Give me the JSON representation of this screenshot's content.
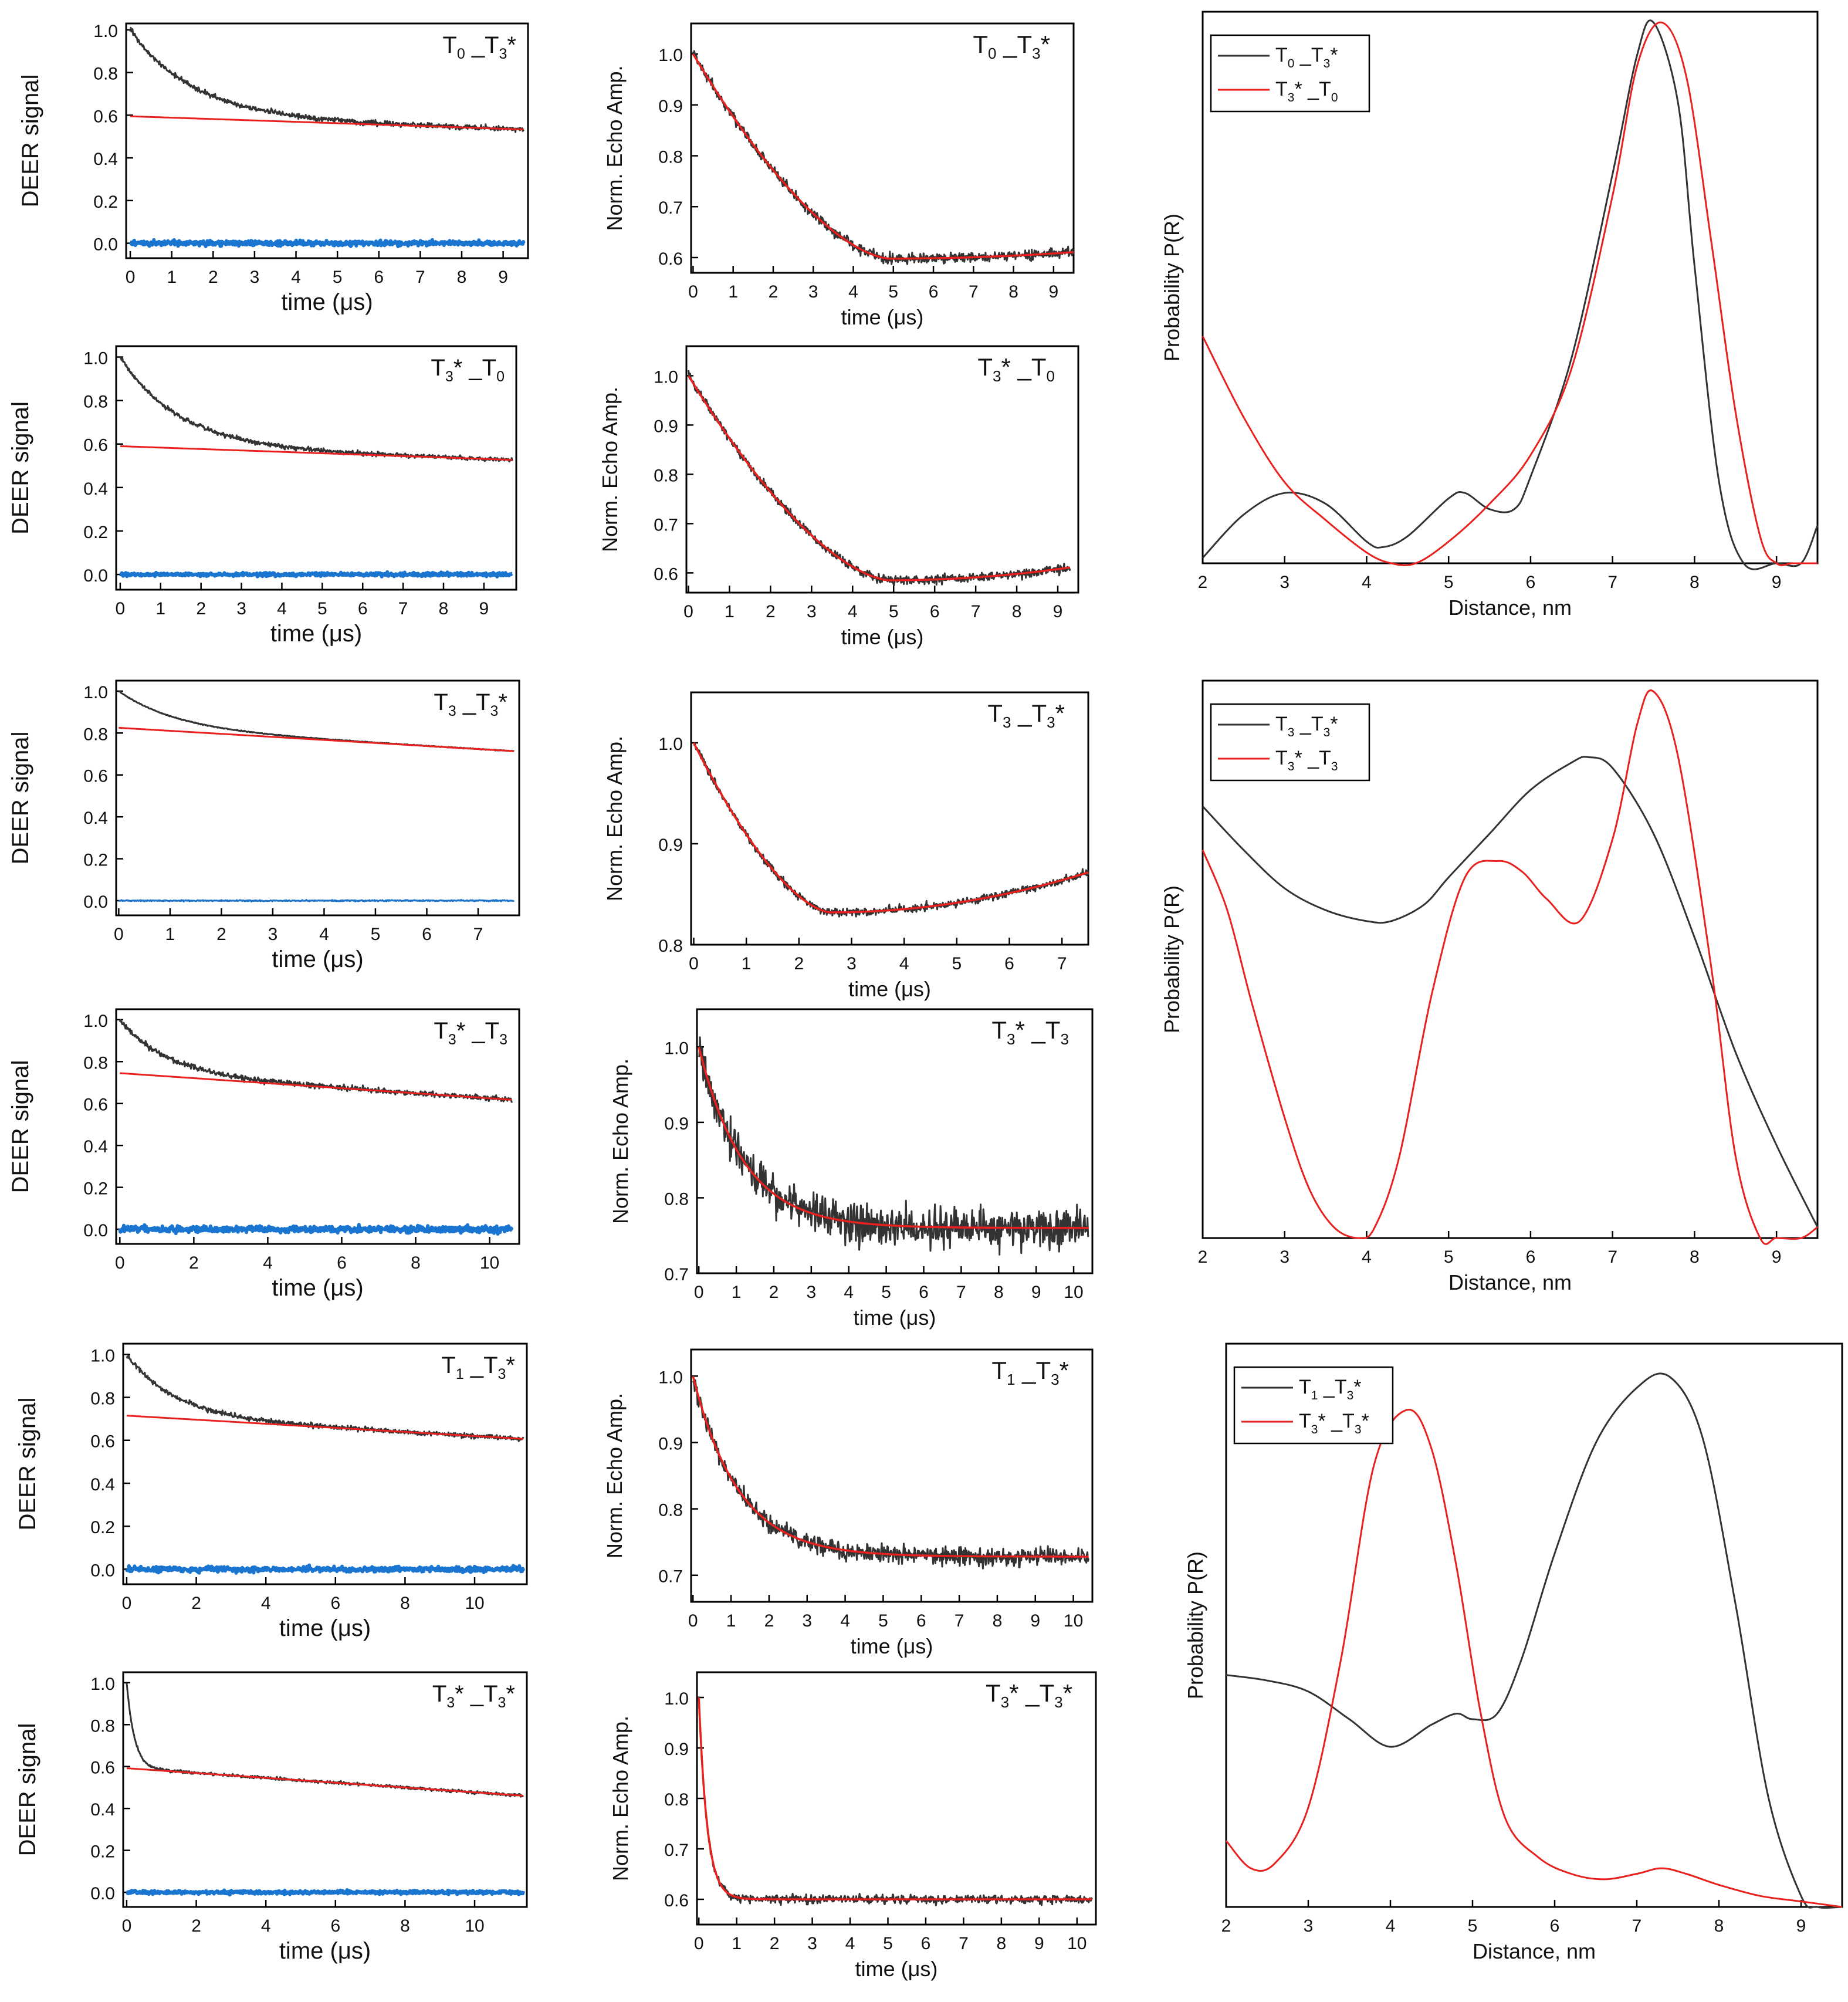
{
  "colors": {
    "data": "#333333",
    "fit": "#e8211e",
    "residual": "#1a75d1",
    "axis": "#000000"
  },
  "chart_data": [
    {
      "type": "line",
      "id": "deer-1",
      "title": "T0_T3*",
      "title_parts": [
        "T",
        "0",
        " _T",
        "3",
        "*"
      ],
      "xlabel": "time (μs)",
      "ylabel": "DEER signal",
      "xlim": [
        -0.1,
        9.6
      ],
      "ylim": [
        -0.07,
        1.03
      ],
      "xticks": [
        0,
        1,
        2,
        3,
        4,
        5,
        6,
        7,
        8,
        9
      ],
      "yticks": [
        0.0,
        0.2,
        0.4,
        0.6,
        0.8,
        1.0
      ],
      "xmax_data": 9.5,
      "decay": {
        "lam": 0.42,
        "tau": 1.5
      },
      "bg": {
        "a": 0.595,
        "slope": 0.0065
      },
      "resid_amp": 0.012,
      "noise": 0.012,
      "seed": 11
    },
    {
      "type": "line",
      "id": "echo-1",
      "title": "T0_T3*",
      "title_parts": [
        "T",
        "0",
        " _T",
        "3",
        "*"
      ],
      "xlabel": "time (μs)",
      "ylabel": "Norm. Echo Amp.",
      "xlim": [
        -0.05,
        9.5
      ],
      "ylim": [
        0.57,
        1.06
      ],
      "xticks": [
        0,
        1,
        2,
        3,
        4,
        5,
        6,
        7,
        8,
        9
      ],
      "yticks": [
        0.6,
        0.7,
        0.8,
        0.9,
        1.0
      ],
      "xmax_data": 9.5,
      "echo": {
        "k": 0.085,
        "mu": 4.9,
        "s": 2.0,
        "c": 0.002,
        "base": 0.598
      },
      "noise": 0.01,
      "seed": 12
    },
    {
      "type": "line",
      "id": "dist-1",
      "series_names": [
        "T0_T3*",
        "T3*_T0"
      ],
      "series_parts": [
        [
          "T",
          "0",
          " _T",
          "3",
          "*"
        ],
        [
          "T",
          "3",
          "* _T",
          "0",
          ""
        ]
      ],
      "xlabel": "Distance, nm",
      "ylabel": "Probability P(R)",
      "xlim": [
        2,
        9.5
      ],
      "ylim": [
        0,
        1.02
      ],
      "xticks": [
        2,
        3,
        4,
        5,
        6,
        7,
        8,
        9
      ],
      "series": [
        {
          "name": "T0_T3*",
          "x": [
            2.0,
            2.5,
            3.0,
            3.5,
            4.0,
            4.2,
            4.5,
            5.0,
            5.2,
            5.5,
            5.8,
            6.0,
            6.5,
            7.0,
            7.3,
            7.5,
            7.8,
            8.0,
            8.3,
            8.6,
            9.0,
            9.3,
            9.5
          ],
          "y": [
            0.01,
            0.09,
            0.13,
            0.11,
            0.04,
            0.03,
            0.05,
            0.12,
            0.13,
            0.1,
            0.1,
            0.16,
            0.38,
            0.72,
            0.94,
            1.0,
            0.85,
            0.55,
            0.15,
            0.0,
            0.0,
            0.0,
            0.07
          ]
        },
        {
          "name": "T3*_T0",
          "x": [
            2.0,
            2.5,
            3.0,
            3.5,
            4.0,
            4.3,
            4.6,
            5.0,
            5.5,
            6.0,
            6.5,
            7.0,
            7.3,
            7.6,
            7.9,
            8.2,
            8.5,
            8.8,
            9.0,
            9.2,
            9.5
          ],
          "y": [
            0.42,
            0.27,
            0.15,
            0.08,
            0.02,
            0.0,
            0.0,
            0.04,
            0.11,
            0.2,
            0.36,
            0.68,
            0.92,
            1.0,
            0.9,
            0.6,
            0.28,
            0.05,
            0.0,
            0.0,
            0.0
          ]
        }
      ],
      "legend_loc": "top-left"
    },
    {
      "type": "line",
      "id": "deer-2",
      "title": "T3*_T0",
      "title_parts": [
        "T",
        "3",
        "* _T",
        "0",
        ""
      ],
      "xlabel": "time (μs)",
      "ylabel": "DEER signal",
      "xlim": [
        -0.1,
        9.8
      ],
      "ylim": [
        -0.07,
        1.05
      ],
      "xticks": [
        0,
        1,
        2,
        3,
        4,
        5,
        6,
        7,
        8,
        9
      ],
      "yticks": [
        0.0,
        0.2,
        0.4,
        0.6,
        0.8,
        1.0
      ],
      "xmax_data": 9.7,
      "decay": {
        "lam": 0.41,
        "tau": 1.45
      },
      "bg": {
        "a": 0.59,
        "slope": 0.0065
      },
      "resid_amp": 0.008,
      "noise": 0.01,
      "seed": 21
    },
    {
      "type": "line",
      "id": "echo-2",
      "title": "T3*_T0",
      "title_parts": [
        "T",
        "3",
        "* _T",
        "0",
        ""
      ],
      "xlabel": "time (μs)",
      "ylabel": "Norm. Echo Amp.",
      "xlim": [
        -0.05,
        9.5
      ],
      "ylim": [
        0.56,
        1.06
      ],
      "xticks": [
        0,
        1,
        2,
        3,
        4,
        5,
        6,
        7,
        8,
        9
      ],
      "yticks": [
        0.6,
        0.7,
        0.8,
        0.9,
        1.0
      ],
      "xmax_data": 9.3,
      "echo": {
        "k": 0.085,
        "mu": 4.9,
        "s": 2.0,
        "c": 0.0045,
        "base": 0.585
      },
      "noise": 0.009,
      "seed": 22
    },
    {
      "type": "line",
      "id": "deer-3",
      "title": "T3_T3*",
      "title_parts": [
        "T",
        "3",
        " _T",
        "3",
        "*"
      ],
      "xlabel": "time (μs)",
      "ylabel": "DEER signal",
      "xlim": [
        -0.05,
        7.8
      ],
      "ylim": [
        -0.07,
        1.05
      ],
      "xticks": [
        0,
        1,
        2,
        3,
        4,
        5,
        6,
        7
      ],
      "yticks": [
        0.0,
        0.2,
        0.4,
        0.6,
        0.8,
        1.0
      ],
      "xmax_data": 7.7,
      "decay": {
        "lam": 0.17,
        "tau": 1.1
      },
      "bg": {
        "a": 0.825,
        "slope": 0.0145
      },
      "resid_amp": 0.003,
      "noise": 0.002,
      "seed": 31
    },
    {
      "type": "line",
      "id": "echo-3",
      "title": "T3_T3*",
      "title_parts": [
        "T",
        "3",
        " _T",
        "3",
        "*"
      ],
      "xlabel": "time (μs)",
      "ylabel": "Norm. Echo Amp.",
      "xlim": [
        -0.05,
        7.5
      ],
      "ylim": [
        0.8,
        1.05
      ],
      "xticks": [
        0,
        1,
        2,
        3,
        4,
        5,
        6,
        7
      ],
      "yticks": [
        0.8,
        0.9,
        1.0
      ],
      "xmax_data": 7.5,
      "echo": {
        "k": 0.16,
        "mu": 2.6,
        "s": 1.8,
        "c": 0.0055,
        "base": 0.832
      },
      "noise": 0.004,
      "seed": 32
    },
    {
      "type": "line",
      "id": "dist-2",
      "series_names": [
        "T3_T3*",
        "T3*_T3"
      ],
      "series_parts": [
        [
          "T",
          "3",
          " _T",
          "3",
          "*"
        ],
        [
          "T",
          "3",
          "* _T",
          "3",
          ""
        ]
      ],
      "xlabel": "Distance, nm",
      "ylabel": "Probability P(R)",
      "xlim": [
        2,
        9.5
      ],
      "ylim": [
        0,
        1.02
      ],
      "xticks": [
        2,
        3,
        4,
        5,
        6,
        7,
        8,
        9
      ],
      "series": [
        {
          "name": "T3_T3*",
          "x": [
            2.0,
            2.5,
            3.0,
            3.5,
            4.0,
            4.3,
            4.7,
            5.0,
            5.5,
            6.0,
            6.5,
            6.7,
            7.0,
            7.5,
            8.0,
            8.5,
            9.0,
            9.5
          ],
          "y": [
            0.79,
            0.71,
            0.64,
            0.6,
            0.58,
            0.58,
            0.61,
            0.66,
            0.74,
            0.82,
            0.87,
            0.88,
            0.86,
            0.74,
            0.55,
            0.34,
            0.17,
            0.02
          ]
        },
        {
          "name": "T3*_T3",
          "x": [
            2.0,
            2.3,
            2.6,
            3.0,
            3.3,
            3.6,
            3.9,
            4.1,
            4.4,
            4.8,
            5.2,
            5.6,
            5.9,
            6.2,
            6.6,
            7.0,
            7.3,
            7.5,
            7.8,
            8.2,
            8.5,
            8.8,
            9.0,
            9.3,
            9.5
          ],
          "y": [
            0.71,
            0.6,
            0.43,
            0.22,
            0.09,
            0.02,
            0.0,
            0.02,
            0.15,
            0.45,
            0.66,
            0.69,
            0.67,
            0.62,
            0.58,
            0.73,
            0.94,
            1.0,
            0.88,
            0.5,
            0.15,
            0.0,
            0.0,
            0.0,
            0.02
          ]
        }
      ],
      "legend_loc": "top-left"
    },
    {
      "type": "line",
      "id": "deer-4",
      "title": "T3*_T3",
      "title_parts": [
        "T",
        "3",
        "* _T",
        "3",
        ""
      ],
      "xlabel": "time (μs)",
      "ylabel": "DEER signal",
      "xlim": [
        -0.1,
        10.8
      ],
      "ylim": [
        -0.07,
        1.05
      ],
      "xticks": [
        0,
        2,
        4,
        6,
        8,
        10
      ],
      "yticks": [
        0.0,
        0.2,
        0.4,
        0.6,
        0.8,
        1.0
      ],
      "xmax_data": 10.6,
      "decay": {
        "lam": 0.26,
        "tau": 1.25
      },
      "bg": {
        "a": 0.745,
        "slope": 0.012
      },
      "resid_amp": 0.015,
      "noise": 0.013,
      "seed": 41
    },
    {
      "type": "line",
      "id": "echo-4",
      "title": "T3*_T3",
      "title_parts": [
        "T",
        "3",
        "* _T",
        "3",
        ""
      ],
      "xlabel": "time (μs)",
      "ylabel": "Norm. Echo Amp.",
      "xlim": [
        -0.05,
        10.5
      ],
      "ylim": [
        0.7,
        1.05
      ],
      "xticks": [
        0,
        1,
        2,
        3,
        4,
        5,
        6,
        7,
        8,
        9,
        10
      ],
      "yticks": [
        0.7,
        0.8,
        0.9,
        1.0
      ],
      "xmax_data": 10.4,
      "echo": {
        "k": 0.24,
        "mu": 7,
        "s": 3,
        "c": 0.0,
        "base": 0.76
      },
      "noise": 0.025,
      "seed": 42
    },
    {
      "type": "line",
      "id": "deer-5",
      "title": "T1_T3*",
      "title_parts": [
        "T",
        "1",
        " _T",
        "3",
        "*"
      ],
      "xlabel": "time (μs)",
      "ylabel": "DEER signal",
      "xlim": [
        -0.1,
        11.5
      ],
      "ylim": [
        -0.07,
        1.05
      ],
      "xticks": [
        0,
        2,
        4,
        6,
        8,
        10
      ],
      "yticks": [
        0.0,
        0.2,
        0.4,
        0.6,
        0.8,
        1.0
      ],
      "xmax_data": 11.4,
      "decay": {
        "lam": 0.29,
        "tau": 1.35
      },
      "bg": {
        "a": 0.715,
        "slope": 0.0095
      },
      "resid_amp": 0.013,
      "noise": 0.011,
      "seed": 51
    },
    {
      "type": "line",
      "id": "echo-5",
      "title": "T1_T3*",
      "title_parts": [
        "T",
        "1",
        " _T",
        "3",
        "*"
      ],
      "xlabel": "time (μs)",
      "ylabel": "Norm. Echo Amp.",
      "xlim": [
        -0.05,
        10.5
      ],
      "ylim": [
        0.66,
        1.04
      ],
      "xticks": [
        0,
        1,
        2,
        3,
        4,
        5,
        6,
        7,
        8,
        9,
        10
      ],
      "yticks": [
        0.7,
        0.8,
        0.9,
        1.0
      ],
      "xmax_data": 10.4,
      "echo": {
        "k": 0.27,
        "mu": 7,
        "s": 3,
        "c": 0.0,
        "base": 0.728
      },
      "noise": 0.013,
      "seed": 52
    },
    {
      "type": "line",
      "id": "dist-3",
      "series_names": [
        "T1_T3*",
        "T3*_T3*"
      ],
      "series_parts": [
        [
          "T",
          "1",
          " _T",
          "3",
          "*"
        ],
        [
          "T",
          "3",
          "* _T",
          "3",
          "*"
        ]
      ],
      "xlabel": "Distance, nm",
      "ylabel": "Probability P(R)",
      "xlim": [
        2,
        9.5
      ],
      "ylim": [
        0,
        1.02
      ],
      "xticks": [
        2,
        3,
        4,
        5,
        6,
        7,
        8,
        9
      ],
      "series": [
        {
          "name": "T1_T3*",
          "x": [
            2.0,
            2.5,
            3.0,
            3.5,
            4.0,
            4.5,
            4.8,
            5.0,
            5.3,
            5.6,
            6.0,
            6.5,
            7.0,
            7.4,
            7.8,
            8.2,
            8.6,
            9.0,
            9.2,
            9.5
          ],
          "y": [
            0.42,
            0.41,
            0.39,
            0.34,
            0.29,
            0.33,
            0.35,
            0.34,
            0.35,
            0.45,
            0.64,
            0.84,
            0.94,
            0.96,
            0.85,
            0.55,
            0.2,
            0.02,
            0.0,
            0.0
          ]
        },
        {
          "name": "T3*_T3*",
          "x": [
            2.0,
            2.3,
            2.6,
            3.0,
            3.4,
            3.8,
            4.2,
            4.5,
            4.8,
            5.1,
            5.4,
            5.8,
            6.2,
            6.6,
            7.0,
            7.3,
            7.6,
            8.0,
            8.5,
            9.0,
            9.5
          ],
          "y": [
            0.12,
            0.07,
            0.08,
            0.18,
            0.45,
            0.8,
            0.9,
            0.83,
            0.62,
            0.35,
            0.16,
            0.09,
            0.06,
            0.05,
            0.06,
            0.07,
            0.06,
            0.04,
            0.02,
            0.01,
            0.0
          ]
        }
      ],
      "legend_loc": "top-left"
    },
    {
      "type": "line",
      "id": "deer-6",
      "title": "T3*_T3*",
      "title_parts": [
        "T",
        "3",
        "* _T",
        "3",
        "*"
      ],
      "xlabel": "time (μs)",
      "ylabel": "DEER signal",
      "xlim": [
        -0.1,
        11.5
      ],
      "ylim": [
        -0.07,
        1.05
      ],
      "xticks": [
        0,
        2,
        4,
        6,
        8,
        10
      ],
      "yticks": [
        0.0,
        0.2,
        0.4,
        0.6,
        0.8,
        1.0
      ],
      "xmax_data": 11.4,
      "decay": {
        "lam": 0.4,
        "tau": 0.22
      },
      "bg": {
        "a": 0.592,
        "slope": 0.0115
      },
      "resid_amp": 0.008,
      "noise": 0.007,
      "seed": 61
    },
    {
      "type": "line",
      "id": "echo-6",
      "title": "T3*_T3*",
      "title_parts": [
        "T",
        "3",
        "* _T",
        "3",
        "*"
      ],
      "xlabel": "time (μs)",
      "ylabel": "Norm. Echo Amp.",
      "xlim": [
        -0.05,
        10.5
      ],
      "ylim": [
        0.55,
        1.05
      ],
      "xticks": [
        0,
        1,
        2,
        3,
        4,
        5,
        6,
        7,
        8,
        9,
        10
      ],
      "yticks": [
        0.6,
        0.7,
        0.8,
        0.9,
        1.0
      ],
      "xmax_data": 10.4,
      "echo": {
        "k": 0.4,
        "mu": 5.5,
        "s": 2.5,
        "c": 0.0,
        "base": 0.6,
        "tau": 0.22
      },
      "noise": 0.008,
      "seed": 62
    }
  ]
}
